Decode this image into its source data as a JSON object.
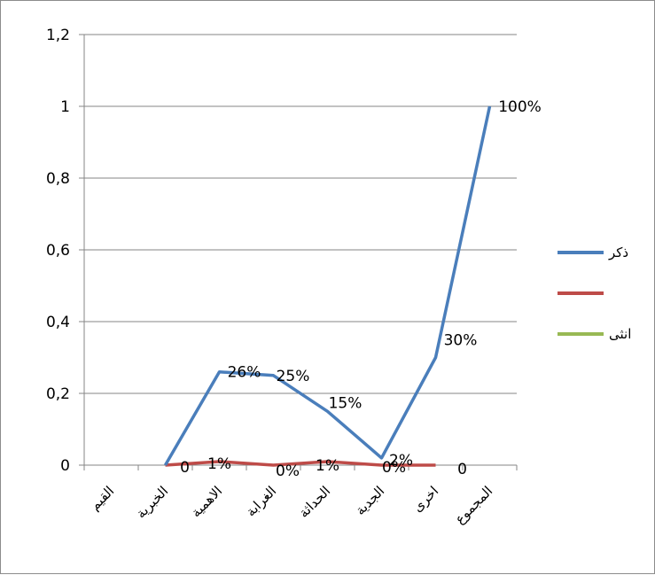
{
  "chart_data": {
    "type": "line",
    "categories": [
      "القيم",
      "الخبرية",
      "الاهمية",
      "الغرابة",
      "الحداثة",
      "الجدية",
      "اخرى",
      "المجموع"
    ],
    "ylim": [
      0,
      1.2
    ],
    "y_ticks": [
      "0",
      "0,2",
      "0,4",
      "0,6",
      "0,8",
      "1",
      "1,2"
    ],
    "grid": true,
    "legend_position": "right",
    "series": [
      {
        "name": "ذكر",
        "color": "#4a7ebb",
        "values": [
          null,
          0,
          0.26,
          0.25,
          0.15,
          0.02,
          0.3,
          1.0
        ],
        "labels": [
          "",
          "0",
          "26%",
          "25%",
          "15%",
          "2%",
          "30%",
          "100%"
        ]
      },
      {
        "name": "",
        "color": "#be4b48",
        "values": [
          null,
          0,
          0.01,
          0,
          0.01,
          0,
          0,
          null
        ],
        "labels": [
          "",
          "",
          "1%",
          "0%",
          "1%",
          "0%",
          "0",
          ""
        ]
      },
      {
        "name": "انثى",
        "color": "#98b954",
        "values": [
          null,
          null,
          null,
          null,
          null,
          null,
          null,
          null
        ],
        "labels": []
      }
    ]
  }
}
